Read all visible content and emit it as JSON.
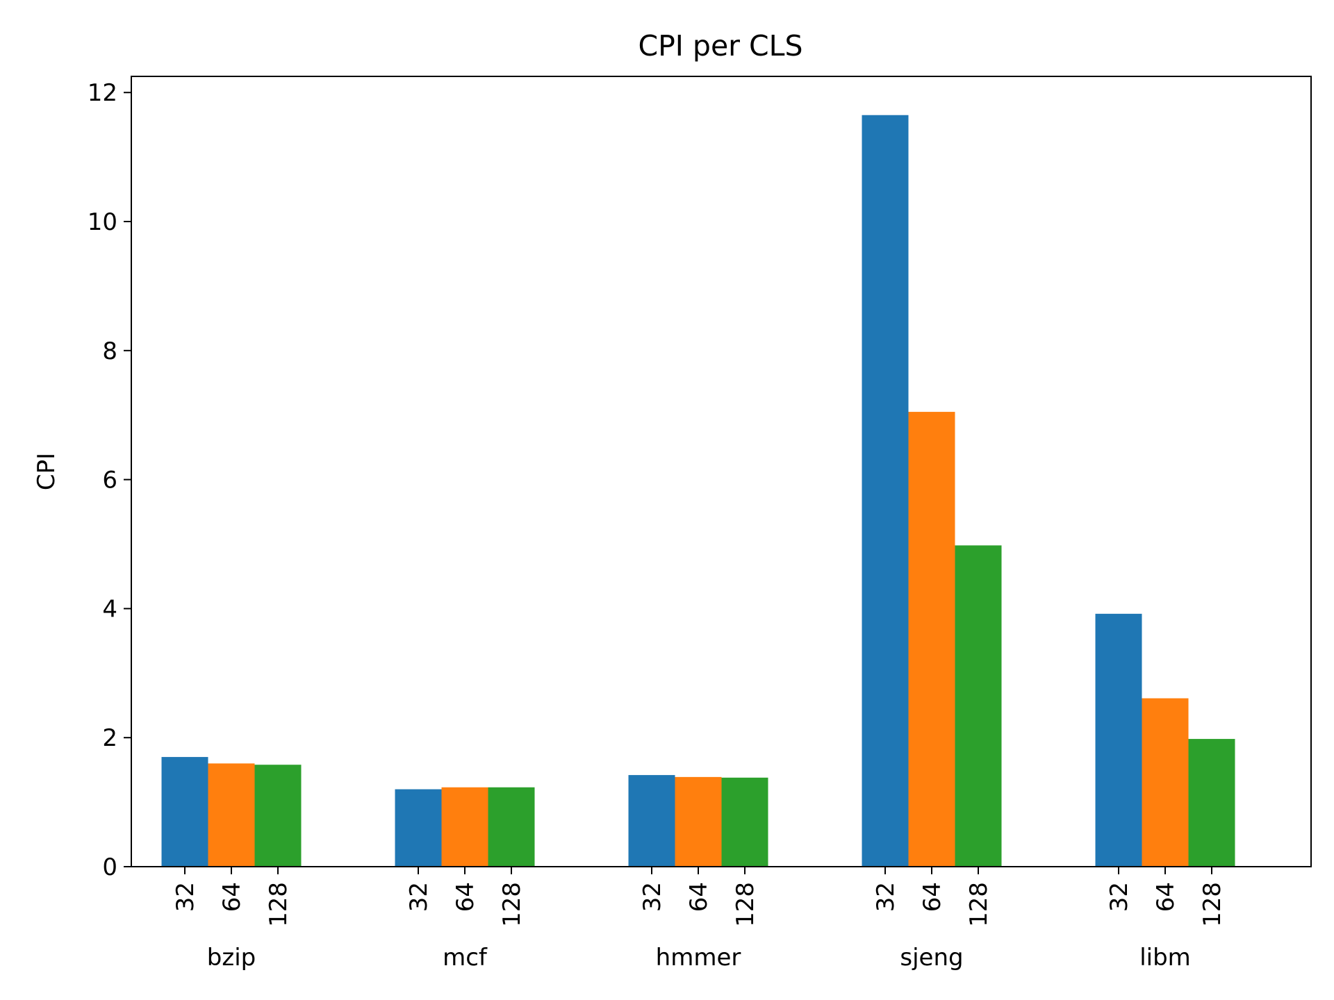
{
  "chart_data": {
    "type": "bar",
    "title": "CPI per CLS",
    "ylabel": "CPI",
    "xlabel": "",
    "ylim": [
      0,
      12.25
    ],
    "yticks": [
      0,
      2,
      4,
      6,
      8,
      10,
      12
    ],
    "grid": false,
    "categories": [
      "bzip",
      "mcf",
      "hmmer",
      "sjeng",
      "libm"
    ],
    "sub_labels": [
      "32",
      "64",
      "128"
    ],
    "series": [
      {
        "name": "32",
        "color": "#1f77b4",
        "values": [
          1.7,
          1.2,
          1.42,
          11.65,
          3.92
        ]
      },
      {
        "name": "64",
        "color": "#ff7f0e",
        "values": [
          1.6,
          1.23,
          1.39,
          7.05,
          2.61
        ]
      },
      {
        "name": "128",
        "color": "#2ca02c",
        "values": [
          1.58,
          1.23,
          1.38,
          4.98,
          1.98
        ]
      }
    ]
  }
}
